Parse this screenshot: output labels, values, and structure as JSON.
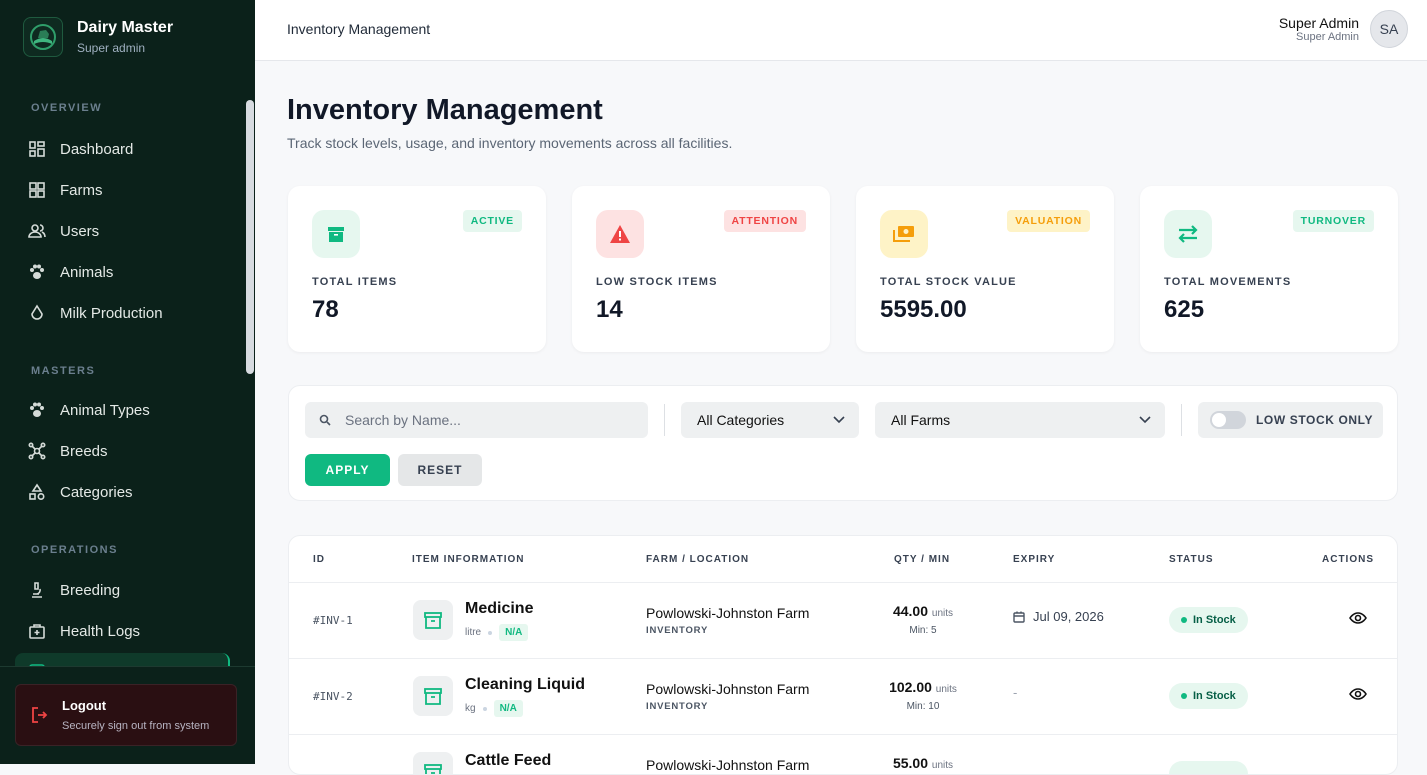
{
  "sidebar": {
    "brand": "Dairy Master",
    "role": "Super admin",
    "sections": [
      "OVERVIEW",
      "MASTERS",
      "OPERATIONS"
    ],
    "items": [
      {
        "label": "Dashboard",
        "icon": "grid-icon"
      },
      {
        "label": "Farms",
        "icon": "grid-icon"
      },
      {
        "label": "Users",
        "icon": "users-icon"
      },
      {
        "label": "Animals",
        "icon": "paw-icon"
      },
      {
        "label": "Milk Production",
        "icon": "drop-icon"
      },
      {
        "label": "Animal Types",
        "icon": "paw-icon"
      },
      {
        "label": "Breeds",
        "icon": "molecule-icon"
      },
      {
        "label": "Categories",
        "icon": "shapes-icon"
      },
      {
        "label": "Breeding",
        "icon": "microscope-icon"
      },
      {
        "label": "Health Logs",
        "icon": "medical-kit-icon"
      }
    ],
    "logout": {
      "label": "Logout",
      "sub": "Securely sign out from system"
    }
  },
  "header": {
    "title": "Inventory Management",
    "user_name": "Super Admin",
    "user_role": "Super Admin",
    "avatar": "SA"
  },
  "page": {
    "title": "Inventory Management",
    "subtitle": "Track stock levels, usage, and inventory movements across all facilities."
  },
  "stats": [
    {
      "label": "TOTAL ITEMS",
      "value": "78",
      "badge": "ACTIVE",
      "color": "#10b981"
    },
    {
      "label": "LOW STOCK ITEMS",
      "value": "14",
      "badge": "ATTENTION",
      "color": "#ef4444"
    },
    {
      "label": "TOTAL STOCK VALUE",
      "value": "5595.00",
      "badge": "VALUATION",
      "color": "#f59e0b"
    },
    {
      "label": "TOTAL MOVEMENTS",
      "value": "625",
      "badge": "TURNOVER",
      "color": "#10b981"
    }
  ],
  "filters": {
    "search_placeholder": "Search by Name...",
    "category": "All Categories",
    "farm": "All Farms",
    "low_stock": "LOW STOCK ONLY",
    "apply": "APPLY",
    "reset": "RESET"
  },
  "table": {
    "headers": [
      "ID",
      "ITEM INFORMATION",
      "FARM / LOCATION",
      "QTY / MIN",
      "EXPIRY",
      "STATUS",
      "ACTIONS"
    ],
    "rows": [
      {
        "id": "#INV-1",
        "name": "Medicine",
        "unit": "litre",
        "tag": "N/A",
        "farm": "Powlowski-Johnston Farm",
        "location": "INVENTORY",
        "qty": "44.00",
        "qty_unit": "units",
        "min": "Min: 5",
        "expiry": "Jul 09, 2026",
        "status": "In Stock"
      },
      {
        "id": "#INV-2",
        "name": "Cleaning Liquid",
        "unit": "kg",
        "tag": "N/A",
        "farm": "Powlowski-Johnston Farm",
        "location": "INVENTORY",
        "qty": "102.00",
        "qty_unit": "units",
        "min": "Min: 10",
        "expiry": "-",
        "status": "In Stock"
      },
      {
        "name": "Cattle Feed",
        "farm": "Powlowski-Johnston Farm",
        "qty": "55.00",
        "qty_unit": "units"
      }
    ]
  }
}
